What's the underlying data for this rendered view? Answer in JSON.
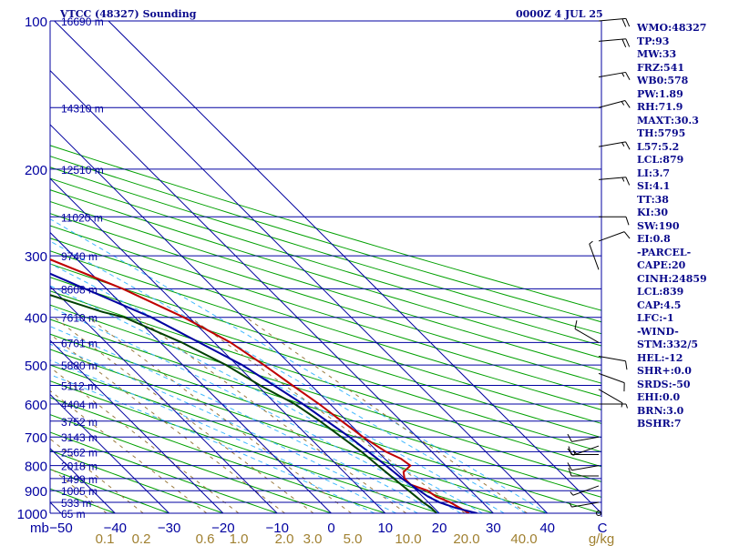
{
  "header": {
    "station": "VTCC (48327) Sounding",
    "datetime": "0000Z  4 JUL 25"
  },
  "indices": [
    "WMO:48327",
    "TP:93",
    "MW:33",
    "FRZ:541",
    "WB0:578",
    "PW:1.89",
    "RH:71.9",
    "MAXT:30.3",
    "TH:5795",
    "L57:5.2",
    "LCL:879",
    "LI:3.7",
    "SI:4.1",
    "TT:38",
    "KI:30",
    "SW:190",
    "EI:0.8",
    "-PARCEL-",
    "CAPE:20",
    "CINH:24859",
    "LCL:839",
    "CAP:4.5",
    "LFC:-1",
    "-WIND-",
    "STM:332/5",
    "HEL:-12",
    "SHR+:0.0",
    "SRDS:-50",
    "EHI:0.0",
    "BRN:3.0",
    "BSHR:7"
  ],
  "colors": {
    "isobar": "#0000a0",
    "isotherm": "#0000a0",
    "dry_adiabat": "#00a000",
    "moist_adiabat": "#40b8ff",
    "mixing_ratio": "#9a7a40",
    "temperature": "#c00000",
    "dewpoint": "#004000",
    "parcel": "#0000a0",
    "text": "#0a0a8c",
    "axis_text": "#0000a0",
    "mixing_text": "#a08030",
    "wind": "#000000"
  },
  "chart_data": {
    "type": "line",
    "title": "",
    "xlabel": "C",
    "ylabel": "mb",
    "pressure_levels": [
      100,
      200,
      300,
      400,
      500,
      600,
      700,
      800,
      900,
      1000
    ],
    "pressure_range": [
      1000,
      100
    ],
    "temperature_ticks": [
      -50,
      -40,
      -30,
      -20,
      -10,
      0,
      10,
      20,
      30,
      40
    ],
    "temperature_unit_label": "C",
    "height_labels": [
      {
        "p": 100,
        "text": "16690 m"
      },
      {
        "p": 150,
        "text": "14310 m"
      },
      {
        "p": 200,
        "text": "12510 m"
      },
      {
        "p": 250,
        "text": "11020 m"
      },
      {
        "p": 300,
        "text": "9740 m"
      },
      {
        "p": 350,
        "text": "8608 m"
      },
      {
        "p": 400,
        "text": "7610 m"
      },
      {
        "p": 450,
        "text": "6701 m"
      },
      {
        "p": 500,
        "text": "5880 m"
      },
      {
        "p": 550,
        "text": "5112 m"
      },
      {
        "p": 600,
        "text": "4404 m"
      },
      {
        "p": 650,
        "text": "3752 m"
      },
      {
        "p": 700,
        "text": "3143 m"
      },
      {
        "p": 750,
        "text": "2562 m"
      },
      {
        "p": 800,
        "text": "2018 m"
      },
      {
        "p": 850,
        "text": "1499 m"
      },
      {
        "p": 900,
        "text": "1005 m"
      },
      {
        "p": 950,
        "text": "533 m"
      },
      {
        "p": 1000,
        "text": "65 m"
      }
    ],
    "mixing_ratio_labels": [
      "0.1",
      "0.2",
      "0.6",
      "1.0",
      "2.0",
      "3.0",
      "5.0",
      "10.0",
      "20.0",
      "40.0"
    ],
    "mixing_ratio_unit": "g/kg",
    "series": [
      {
        "key": "temperature",
        "points": [
          [
            1000,
            25.5
          ],
          [
            950,
            24
          ],
          [
            925,
            22.5
          ],
          [
            900,
            22
          ],
          [
            875,
            20
          ],
          [
            850,
            20
          ],
          [
            825,
            21
          ],
          [
            800,
            23.5
          ],
          [
            775,
            23
          ],
          [
            750,
            21.5
          ],
          [
            700,
            20
          ],
          [
            650,
            19
          ],
          [
            600,
            18
          ],
          [
            550,
            16.5
          ],
          [
            500,
            15
          ],
          [
            450,
            13
          ],
          [
            400,
            9
          ],
          [
            350,
            3
          ],
          [
            300,
            -6
          ],
          [
            250,
            -18
          ],
          [
            200,
            -33
          ],
          [
            150,
            -52
          ],
          [
            120,
            -67
          ],
          [
            100,
            -76
          ]
        ]
      },
      {
        "key": "dewpoint",
        "points": [
          [
            1000,
            19.5
          ],
          [
            975,
            19.5
          ],
          [
            950,
            19
          ],
          [
            900,
            18.5
          ],
          [
            850,
            18
          ],
          [
            800,
            17.5
          ],
          [
            750,
            17
          ],
          [
            700,
            16
          ],
          [
            650,
            15
          ],
          [
            600,
            13.5
          ],
          [
            550,
            10.5
          ],
          [
            500,
            8
          ],
          [
            450,
            4
          ],
          [
            400,
            -2
          ],
          [
            390,
            -5
          ],
          [
            350,
            -14
          ],
          [
            300,
            -24
          ],
          [
            250,
            -37
          ],
          [
            220,
            -44
          ],
          [
            200,
            -48
          ],
          [
            150,
            -68
          ],
          [
            125,
            -78
          ],
          [
            110,
            -82
          ],
          [
            100,
            -84
          ]
        ]
      },
      {
        "key": "parcel",
        "points": [
          [
            1000,
            27
          ],
          [
            975,
            24
          ],
          [
            950,
            22
          ],
          [
            925,
            21
          ],
          [
            900,
            20.5
          ],
          [
            850,
            19.5
          ],
          [
            800,
            19
          ],
          [
            700,
            17.5
          ],
          [
            600,
            15
          ],
          [
            500,
            11
          ],
          [
            400,
            3
          ],
          [
            300,
            -12
          ],
          [
            250,
            -24
          ],
          [
            200,
            -40
          ],
          [
            150,
            -60
          ],
          [
            125,
            -72
          ]
        ]
      }
    ],
    "wind_barbs": [
      {
        "p": 100,
        "dir": 85,
        "kt": 20
      },
      {
        "p": 110,
        "dir": 85,
        "kt": 20
      },
      {
        "p": 130,
        "dir": 80,
        "kt": 15
      },
      {
        "p": 150,
        "dir": 75,
        "kt": 15
      },
      {
        "p": 180,
        "dir": 80,
        "kt": 15
      },
      {
        "p": 210,
        "dir": 85,
        "kt": 15
      },
      {
        "p": 250,
        "dir": 90,
        "kt": 10
      },
      {
        "p": 280,
        "dir": 70,
        "kt": 10
      },
      {
        "p": 320,
        "dir": 340,
        "kt": 5
      },
      {
        "p": 450,
        "dir": 300,
        "kt": 10
      },
      {
        "p": 480,
        "dir": 100,
        "kt": 10
      },
      {
        "p": 520,
        "dir": 110,
        "kt": 10
      },
      {
        "p": 560,
        "dir": 120,
        "kt": 5
      },
      {
        "p": 600,
        "dir": 90,
        "kt": 5
      },
      {
        "p": 700,
        "dir": 260,
        "kt": 10
      },
      {
        "p": 730,
        "dir": 250,
        "kt": 15
      },
      {
        "p": 760,
        "dir": 270,
        "kt": 15
      },
      {
        "p": 800,
        "dir": 260,
        "kt": 10
      },
      {
        "p": 840,
        "dir": 270,
        "kt": 10
      },
      {
        "p": 880,
        "dir": 250,
        "kt": 5
      },
      {
        "p": 950,
        "dir": 260,
        "kt": 5
      },
      {
        "p": 1000,
        "dir": 0,
        "kt": 0
      }
    ]
  }
}
